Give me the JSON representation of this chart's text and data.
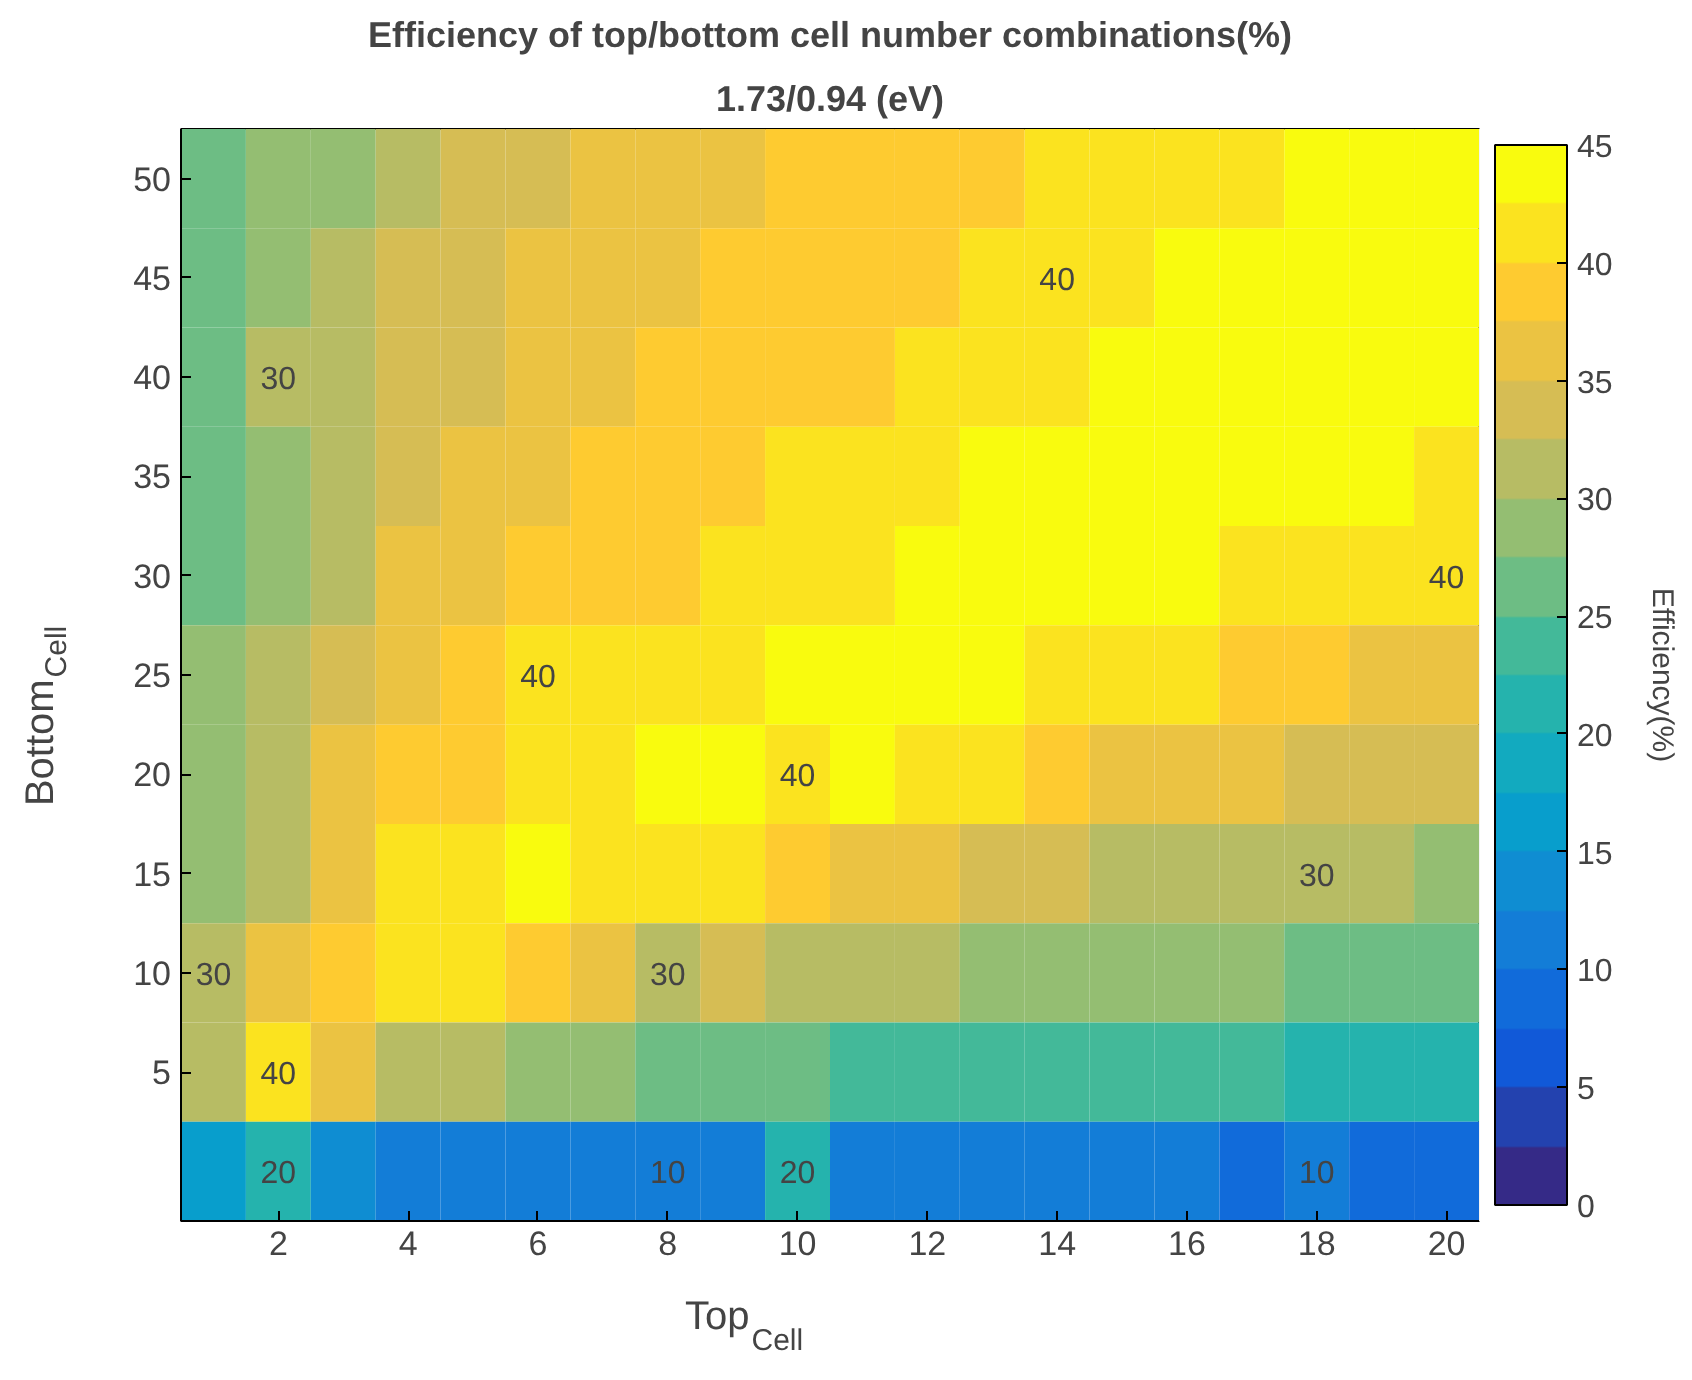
{
  "chart_data": {
    "type": "heatmap",
    "title": "Efficiency of top/bottom cell number combinations(%)",
    "subtitle": "1.73/0.94 (eV)",
    "xlabel": "Top$_{Cell}$",
    "ylabel": "Bottom$_{Cell}$",
    "clabel": "Efficiency(%)",
    "categories": [
      null,
      "2",
      null,
      "4",
      null,
      "6",
      null,
      "8",
      null,
      "10",
      null,
      "12",
      null,
      "14",
      null,
      "16",
      null,
      "18",
      null,
      "20"
    ],
    "y_categories": [
      "50",
      "45",
      "40",
      "35",
      "30",
      "25",
      "20",
      "15",
      "10",
      "5",
      null
    ],
    "cells": [
      [
        26,
        28,
        29.5,
        32,
        33,
        34.5,
        35,
        36,
        37,
        37.5,
        38,
        38.5,
        39,
        40,
        41,
        41.5,
        42,
        42.5,
        43,
        43.5
      ],
      [
        26.5,
        28.5,
        30,
        32.5,
        34,
        35,
        36,
        37,
        37.5,
        38,
        39,
        39.5,
        40,
        40,
        42,
        42.5,
        43,
        43.5,
        44,
        44
      ],
      [
        26.5,
        30,
        30,
        33,
        34.5,
        36,
        37,
        37.5,
        38,
        38.5,
        39.5,
        40.5,
        41,
        42,
        43,
        43.5,
        44,
        44,
        44,
        43.5
      ],
      [
        27,
        29,
        31,
        34,
        35.5,
        37,
        37.5,
        38,
        39,
        40,
        41,
        42,
        42.5,
        43,
        43.5,
        44,
        44,
        43.5,
        43,
        42
      ],
      [
        27,
        29.5,
        32,
        35,
        36.5,
        38,
        39,
        39.5,
        40,
        41,
        42,
        43,
        43.5,
        44,
        43.5,
        43,
        42,
        41,
        40,
        40
      ],
      [
        27.5,
        30,
        33,
        36.5,
        38,
        40,
        40,
        41,
        42,
        43,
        43.5,
        44,
        43,
        42,
        41,
        40,
        39,
        38,
        37,
        36
      ],
      [
        28,
        31,
        35,
        38,
        39,
        40.5,
        42,
        43,
        43.5,
        40,
        43,
        41.5,
        40,
        38,
        37,
        36,
        35,
        34,
        33,
        32.5
      ],
      [
        29,
        32,
        37,
        40,
        41.5,
        43,
        42,
        41,
        40,
        38.5,
        37,
        35,
        34,
        33,
        32,
        31.5,
        31,
        30,
        30,
        29.5
      ],
      [
        30,
        35,
        39,
        41,
        40,
        39,
        37,
        30,
        33.5,
        32,
        31,
        30,
        29.5,
        29,
        28.5,
        28,
        27.5,
        27,
        26.5,
        26
      ],
      [
        31,
        40,
        35,
        32,
        30.5,
        29,
        28,
        27,
        26,
        25,
        24.5,
        24,
        23.5,
        23,
        23,
        23,
        22.5,
        22,
        22,
        22
      ],
      [
        17,
        20,
        13,
        12,
        11.5,
        11,
        10.5,
        10,
        10,
        20,
        10,
        10,
        10,
        10,
        10,
        10,
        9.5,
        10,
        9,
        9
      ]
    ],
    "clim": [
      0,
      45
    ],
    "cticks": [
      0,
      5,
      10,
      15,
      20,
      25,
      30,
      35,
      40,
      45
    ],
    "cell_labels": [
      [
        null,
        null,
        null,
        null,
        null,
        null,
        null,
        null,
        null,
        null,
        null,
        null,
        null,
        null,
        null,
        null,
        null,
        null,
        null,
        null
      ],
      [
        null,
        null,
        null,
        null,
        null,
        null,
        null,
        null,
        null,
        null,
        null,
        null,
        null,
        "40",
        null,
        null,
        null,
        null,
        null,
        null
      ],
      [
        null,
        "30",
        null,
        null,
        null,
        null,
        null,
        null,
        null,
        null,
        null,
        null,
        null,
        null,
        null,
        null,
        null,
        null,
        null,
        null
      ],
      [
        null,
        null,
        null,
        null,
        null,
        null,
        null,
        null,
        null,
        null,
        null,
        null,
        null,
        null,
        null,
        null,
        null,
        null,
        null,
        null
      ],
      [
        null,
        null,
        null,
        null,
        null,
        null,
        null,
        null,
        null,
        null,
        null,
        null,
        null,
        null,
        null,
        null,
        null,
        null,
        null,
        "40"
      ],
      [
        null,
        null,
        null,
        null,
        null,
        "40",
        null,
        null,
        null,
        null,
        null,
        null,
        null,
        null,
        null,
        null,
        null,
        null,
        null,
        null
      ],
      [
        null,
        null,
        null,
        null,
        null,
        null,
        null,
        null,
        null,
        "40",
        null,
        null,
        null,
        null,
        null,
        null,
        null,
        null,
        null,
        null
      ],
      [
        null,
        null,
        null,
        null,
        null,
        null,
        null,
        null,
        null,
        null,
        null,
        null,
        null,
        null,
        null,
        null,
        null,
        "30",
        null,
        null
      ],
      [
        "30",
        null,
        null,
        null,
        null,
        null,
        null,
        "30",
        null,
        null,
        null,
        null,
        null,
        null,
        null,
        null,
        null,
        null,
        null,
        null
      ],
      [
        null,
        "40",
        null,
        null,
        null,
        null,
        null,
        null,
        null,
        null,
        null,
        null,
        null,
        null,
        null,
        null,
        null,
        null,
        null,
        null
      ],
      [
        null,
        "20",
        null,
        null,
        null,
        null,
        null,
        "10",
        null,
        "20",
        null,
        null,
        null,
        null,
        null,
        null,
        null,
        "10",
        null,
        null
      ]
    ]
  }
}
